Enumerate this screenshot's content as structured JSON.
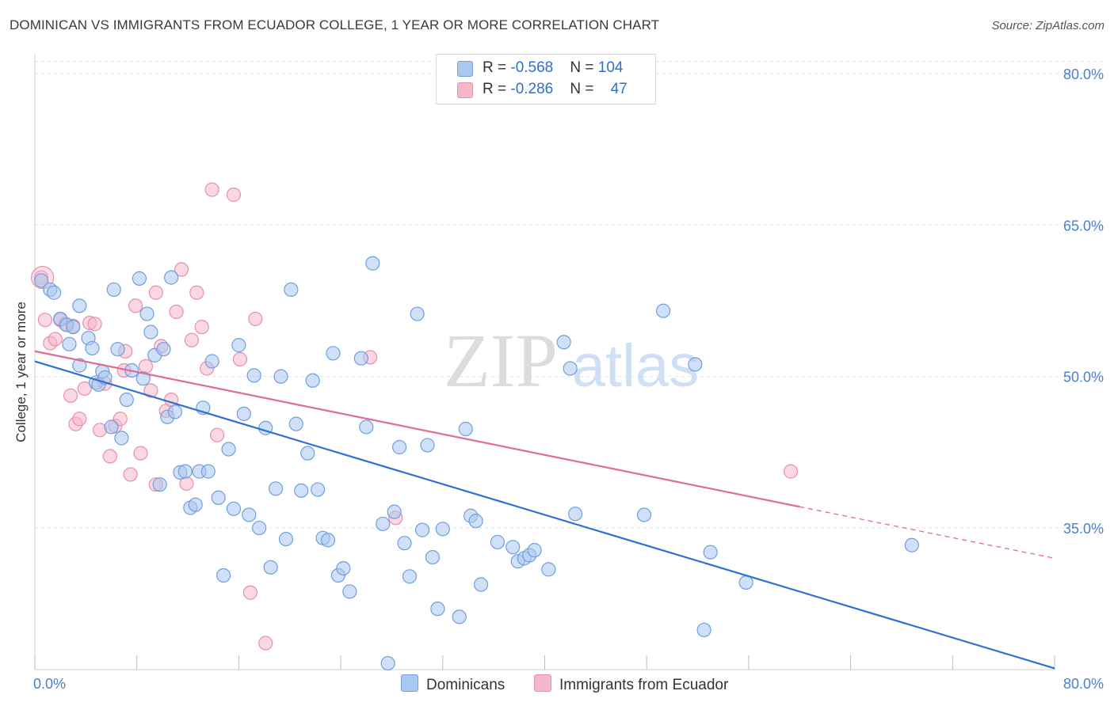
{
  "title": "DOMINICAN VS IMMIGRANTS FROM ECUADOR COLLEGE, 1 YEAR OR MORE CORRELATION CHART",
  "source": "Source: ZipAtlas.com",
  "watermark": {
    "zip": "ZIP",
    "atlas": "atlas"
  },
  "colors": {
    "blue_fill": "#a9c7ef",
    "blue_stroke": "#6f9fe0",
    "blue_line": "#2f6fd6",
    "pink_fill": "#f5b7ca",
    "pink_stroke": "#ea8fab",
    "pink_line": "#e06b93",
    "axis_text": "#4a7fd1",
    "grid": "#e2e2e2"
  },
  "legend": {
    "rows": [
      {
        "r_label": "R = ",
        "r_value": "-0.568",
        "n_label": "N = ",
        "n_value": "104"
      },
      {
        "r_label": "R = ",
        "r_value": "-0.286",
        "n_label": "N = ",
        "n_value": "47"
      }
    ]
  },
  "bottom_legend": {
    "series1": "Dominicans",
    "series2": "Immigrants from Ecuador"
  },
  "chart_data": {
    "type": "scatter",
    "title": "DOMINICAN VS IMMIGRANTS FROM ECUADOR COLLEGE, 1 YEAR OR MORE CORRELATION CHART",
    "xlabel": "",
    "ylabel": "College, 1 year or more",
    "xlim": [
      0,
      80
    ],
    "ylim": [
      21,
      82
    ],
    "x_tick_labels": [
      "0.0%",
      "80.0%"
    ],
    "y_ticks": [
      35,
      50,
      65,
      80
    ],
    "y_tick_labels": [
      "35.0%",
      "50.0%",
      "65.0%",
      "80.0%"
    ],
    "grid": true,
    "series": [
      {
        "name": "Dominicans",
        "color": "blue",
        "trend": {
          "x0": 0,
          "y0": 51.5,
          "x1": 80,
          "y1": 21.1
        },
        "points": [
          [
            0.5,
            59.5
          ],
          [
            1.2,
            58.6
          ],
          [
            1.5,
            58.3
          ],
          [
            2.0,
            55.7
          ],
          [
            2.5,
            55.1
          ],
          [
            3.0,
            54.9
          ],
          [
            3.5,
            57.0
          ],
          [
            2.7,
            53.2
          ],
          [
            4.2,
            53.8
          ],
          [
            4.5,
            52.8
          ],
          [
            3.5,
            51.1
          ],
          [
            4.8,
            49.4
          ],
          [
            5.0,
            49.2
          ],
          [
            5.3,
            50.5
          ],
          [
            5.5,
            49.9
          ],
          [
            6.0,
            45.0
          ],
          [
            6.5,
            52.7
          ],
          [
            6.8,
            43.9
          ],
          [
            7.2,
            47.7
          ],
          [
            7.6,
            50.6
          ],
          [
            6.2,
            58.6
          ],
          [
            8.2,
            59.7
          ],
          [
            8.5,
            49.8
          ],
          [
            8.8,
            56.2
          ],
          [
            9.1,
            54.4
          ],
          [
            9.4,
            52.1
          ],
          [
            9.8,
            39.3
          ],
          [
            10.1,
            52.7
          ],
          [
            10.4,
            46.0
          ],
          [
            10.7,
            59.8
          ],
          [
            11.0,
            46.5
          ],
          [
            11.4,
            40.5
          ],
          [
            11.8,
            40.6
          ],
          [
            12.2,
            37.0
          ],
          [
            12.6,
            37.3
          ],
          [
            12.9,
            40.6
          ],
          [
            13.2,
            46.9
          ],
          [
            13.6,
            40.6
          ],
          [
            13.9,
            51.5
          ],
          [
            14.4,
            38.0
          ],
          [
            14.8,
            30.3
          ],
          [
            15.2,
            42.8
          ],
          [
            15.6,
            36.9
          ],
          [
            16.0,
            53.1
          ],
          [
            16.4,
            46.3
          ],
          [
            16.8,
            36.3
          ],
          [
            17.2,
            50.1
          ],
          [
            17.6,
            35.0
          ],
          [
            18.1,
            44.9
          ],
          [
            18.5,
            31.1
          ],
          [
            18.9,
            38.9
          ],
          [
            19.3,
            50.0
          ],
          [
            19.7,
            33.9
          ],
          [
            20.1,
            58.6
          ],
          [
            20.5,
            45.3
          ],
          [
            20.9,
            38.7
          ],
          [
            21.4,
            42.4
          ],
          [
            21.8,
            49.6
          ],
          [
            22.2,
            38.8
          ],
          [
            22.6,
            34.0
          ],
          [
            23.0,
            33.8
          ],
          [
            23.4,
            52.3
          ],
          [
            23.8,
            30.3
          ],
          [
            24.2,
            31.0
          ],
          [
            24.7,
            28.7
          ],
          [
            25.6,
            51.8
          ],
          [
            26.0,
            45.0
          ],
          [
            26.5,
            61.2
          ],
          [
            27.3,
            35.4
          ],
          [
            27.7,
            21.6
          ],
          [
            28.2,
            36.6
          ],
          [
            28.6,
            43.0
          ],
          [
            29.0,
            33.5
          ],
          [
            29.4,
            30.2
          ],
          [
            30.0,
            56.2
          ],
          [
            30.4,
            34.8
          ],
          [
            30.8,
            43.2
          ],
          [
            31.2,
            32.1
          ],
          [
            31.6,
            27.0
          ],
          [
            32.0,
            34.9
          ],
          [
            33.3,
            26.2
          ],
          [
            33.8,
            44.8
          ],
          [
            34.2,
            36.2
          ],
          [
            34.6,
            35.7
          ],
          [
            35.0,
            29.4
          ],
          [
            36.3,
            33.6
          ],
          [
            37.5,
            33.1
          ],
          [
            37.9,
            31.7
          ],
          [
            38.4,
            32.0
          ],
          [
            38.8,
            32.3
          ],
          [
            39.2,
            32.8
          ],
          [
            40.3,
            30.9
          ],
          [
            41.5,
            53.4
          ],
          [
            42.0,
            50.8
          ],
          [
            42.4,
            36.4
          ],
          [
            47.8,
            36.3
          ],
          [
            49.3,
            56.5
          ],
          [
            51.8,
            51.2
          ],
          [
            52.5,
            24.9
          ],
          [
            53.0,
            32.6
          ],
          [
            55.8,
            29.6
          ],
          [
            68.8,
            33.3
          ]
        ]
      },
      {
        "name": "Immigrants from Ecuador",
        "color": "pink",
        "trend": {
          "x0": 0,
          "y0": 52.5,
          "x1": 60,
          "y1": 37.1,
          "dash_to_x": 80,
          "dash_to_y": 32.0
        },
        "points": [
          [
            0.5,
            59.8
          ],
          [
            0.8,
            55.6
          ],
          [
            1.2,
            53.3
          ],
          [
            1.6,
            53.7
          ],
          [
            2.0,
            55.6
          ],
          [
            2.4,
            55.2
          ],
          [
            2.8,
            48.1
          ],
          [
            3.2,
            45.3
          ],
          [
            3.5,
            45.8
          ],
          [
            3.9,
            48.8
          ],
          [
            4.3,
            55.3
          ],
          [
            4.7,
            55.2
          ],
          [
            5.1,
            44.7
          ],
          [
            5.5,
            49.3
          ],
          [
            5.9,
            42.1
          ],
          [
            6.3,
            45.1
          ],
          [
            6.7,
            45.8
          ],
          [
            7.1,
            52.5
          ],
          [
            7.5,
            40.3
          ],
          [
            7.9,
            57.0
          ],
          [
            8.3,
            42.4
          ],
          [
            8.7,
            51.0
          ],
          [
            9.1,
            48.6
          ],
          [
            9.5,
            58.3
          ],
          [
            9.9,
            53.0
          ],
          [
            10.3,
            46.6
          ],
          [
            10.7,
            47.7
          ],
          [
            11.1,
            56.4
          ],
          [
            11.5,
            60.6
          ],
          [
            11.9,
            39.4
          ],
          [
            12.3,
            53.6
          ],
          [
            12.7,
            58.3
          ],
          [
            13.1,
            54.9
          ],
          [
            13.5,
            50.8
          ],
          [
            13.9,
            68.5
          ],
          [
            14.3,
            44.2
          ],
          [
            15.6,
            68.0
          ],
          [
            16.1,
            51.7
          ],
          [
            16.9,
            28.6
          ],
          [
            17.3,
            55.7
          ],
          [
            18.1,
            23.6
          ],
          [
            26.3,
            51.9
          ],
          [
            28.3,
            36.0
          ],
          [
            7.0,
            50.6
          ],
          [
            3.0,
            55.0
          ],
          [
            9.5,
            39.3
          ],
          [
            59.3,
            40.6
          ]
        ]
      }
    ]
  }
}
